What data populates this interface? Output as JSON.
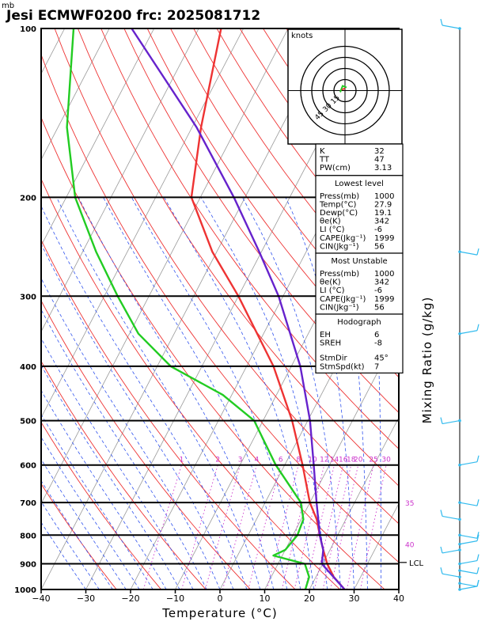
{
  "title": "Jesi ECMWF0200  frc: 2025081712",
  "pressure_unit": "mb",
  "chart_data": {
    "type": "line",
    "title": "Jesi ECMWF0200  frc: 2025081712",
    "xlabel": "Temperature (°C)",
    "ylabel": "",
    "right_label": "Mixing Ratio (g/kg)",
    "xlim": [
      -40,
      40
    ],
    "ylim_pressure_mb": [
      1000,
      100
    ],
    "y_scale": "log-pressure",
    "x_ticks": [
      -40,
      -30,
      -20,
      -10,
      0,
      10,
      20,
      30,
      40
    ],
    "y_ticks": [
      100,
      200,
      300,
      400,
      500,
      600,
      700,
      800,
      900,
      1000
    ],
    "mixing_ratio_labels": [
      "1",
      "2",
      "3",
      "4",
      "6",
      "8",
      "10",
      "12",
      "14",
      "16",
      "18",
      "20",
      "25",
      "30"
    ],
    "mixing_ratio_values": [
      1,
      2,
      3,
      4,
      6,
      8,
      10,
      12,
      14,
      16,
      18,
      20,
      25,
      30
    ],
    "theta_e_labels": [
      {
        "text": "35",
        "p": 700
      },
      {
        "text": "40",
        "p": 830
      }
    ],
    "lcl_label": "LCL",
    "lcl_pressure": 895,
    "series": [
      {
        "name": "Temperature",
        "color": "#ee3333",
        "points": [
          [
            1000,
            27.9
          ],
          [
            950,
            24
          ],
          [
            900,
            21
          ],
          [
            850,
            18.5
          ],
          [
            800,
            16
          ],
          [
            750,
            13.5
          ],
          [
            700,
            10
          ],
          [
            600,
            4
          ],
          [
            500,
            -3.5
          ],
          [
            400,
            -14
          ],
          [
            300,
            -30
          ],
          [
            250,
            -41
          ],
          [
            200,
            -52
          ],
          [
            150,
            -58
          ],
          [
            100,
            -65
          ]
        ]
      },
      {
        "name": "Dewpoint",
        "color": "#22cc22",
        "points": [
          [
            1000,
            19.1
          ],
          [
            950,
            18.5
          ],
          [
            900,
            16
          ],
          [
            870,
            8
          ],
          [
            850,
            10
          ],
          [
            800,
            11
          ],
          [
            750,
            10.5
          ],
          [
            700,
            8
          ],
          [
            600,
            -2
          ],
          [
            500,
            -12
          ],
          [
            450,
            -22
          ],
          [
            400,
            -37
          ],
          [
            350,
            -48
          ],
          [
            300,
            -57
          ],
          [
            250,
            -67
          ],
          [
            200,
            -78
          ],
          [
            150,
            -88
          ],
          [
            100,
            -98
          ]
        ]
      },
      {
        "name": "Parcel",
        "color": "#6622cc",
        "points": [
          [
            1000,
            27.9
          ],
          [
            900,
            19.8
          ],
          [
            850,
            18.5
          ],
          [
            800,
            16
          ],
          [
            700,
            11.5
          ],
          [
            600,
            6.5
          ],
          [
            500,
            0.5
          ],
          [
            400,
            -8
          ],
          [
            300,
            -21
          ],
          [
            250,
            -30.5
          ],
          [
            200,
            -42.5
          ],
          [
            150,
            -59
          ],
          [
            100,
            -85
          ]
        ]
      }
    ],
    "hodograph": {
      "unit_label": "knots",
      "rings": [
        "15",
        "30",
        "45"
      ]
    },
    "wind_barbs_pressure_mb": [
      100,
      250,
      350,
      500,
      600,
      700,
      750,
      800,
      830,
      850,
      900,
      925,
      950,
      975,
      1000
    ]
  },
  "indices": {
    "top": [
      {
        "k": "K",
        "v": "32"
      },
      {
        "k": "TT",
        "v": "47"
      },
      {
        "k": "PW(cm)",
        "v": "3.13"
      }
    ],
    "lowest_level": {
      "heading": "Lowest level",
      "rows": [
        {
          "k": "Press(mb)",
          "v": "1000"
        },
        {
          "k": "Temp(°C)",
          "v": "27.9"
        },
        {
          "k": "Dewp(°C)",
          "v": "19.1"
        },
        {
          "k": "θe(K)",
          "v": "342"
        },
        {
          "k": "LI (°C)",
          "v": "-6"
        },
        {
          "k": "CAPE(Jkg⁻¹)",
          "v": "1999"
        },
        {
          "k": "CIN(Jkg⁻¹)",
          "v": "56"
        }
      ]
    },
    "most_unstable": {
      "heading": "Most Unstable",
      "rows": [
        {
          "k": "Press(mb)",
          "v": "1000"
        },
        {
          "k": "θe(K)",
          "v": "342"
        },
        {
          "k": "LI (°C)",
          "v": "-6"
        },
        {
          "k": "CAPE(Jkg⁻¹)",
          "v": "1999"
        },
        {
          "k": "CIN(Jkg⁻¹)",
          "v": "56"
        }
      ]
    },
    "hodograph_box": {
      "heading": "Hodograph",
      "rows": [
        {
          "k": "EH",
          "v": "6"
        },
        {
          "k": "SREH",
          "v": "-8"
        }
      ],
      "storm_rows": [
        {
          "k": "StmDir",
          "v": "45°"
        },
        {
          "k": "StmSpd(kt)",
          "v": "7"
        }
      ]
    }
  },
  "colors": {
    "isotherm": "#999999",
    "dry_adiabat": "#ee3333",
    "moist_adiabat": "#3355ee",
    "mixing_ratio": "#cc33cc",
    "wind": "#33bbee",
    "temperature": "#ee3333",
    "dewpoint": "#22cc22",
    "parcel": "#6622cc"
  }
}
